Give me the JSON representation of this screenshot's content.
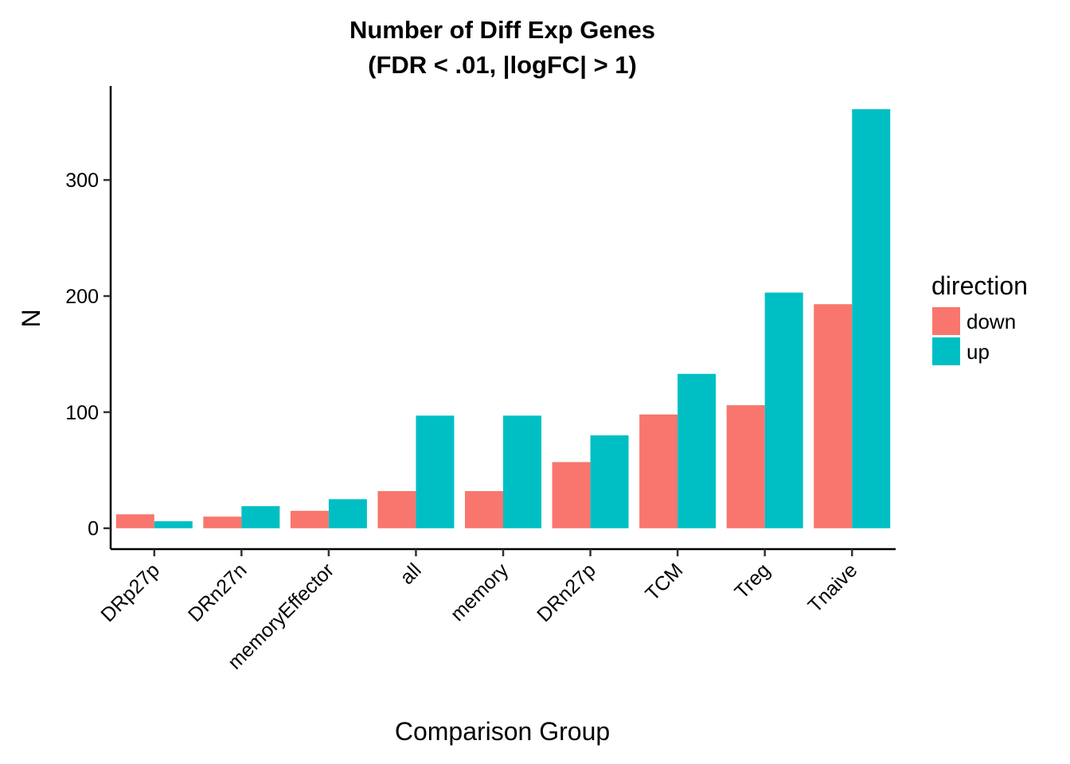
{
  "chart_data": {
    "type": "bar",
    "title_lines": [
      "Number of Diff Exp Genes",
      "(FDR < .01, |logFC| > 1)"
    ],
    "xlabel": "Comparison Group",
    "ylabel": "N",
    "categories": [
      "DRp27p",
      "DRn27n",
      "memoryEffector",
      "all",
      "memory",
      "DRn27p",
      "TCM",
      "Treg",
      "Tnaive"
    ],
    "series": [
      {
        "name": "down",
        "color": "#F8766D",
        "values": [
          12,
          10,
          15,
          32,
          32,
          57,
          98,
          106,
          193
        ]
      },
      {
        "name": "up",
        "color": "#00BFC4",
        "values": [
          6,
          19,
          25,
          97,
          97,
          80,
          133,
          203,
          361
        ]
      }
    ],
    "yticks": [
      0,
      100,
      200,
      300
    ],
    "ylim": [
      -18,
      381
    ],
    "grid": false,
    "legend": {
      "title": "direction",
      "position": "right"
    }
  }
}
